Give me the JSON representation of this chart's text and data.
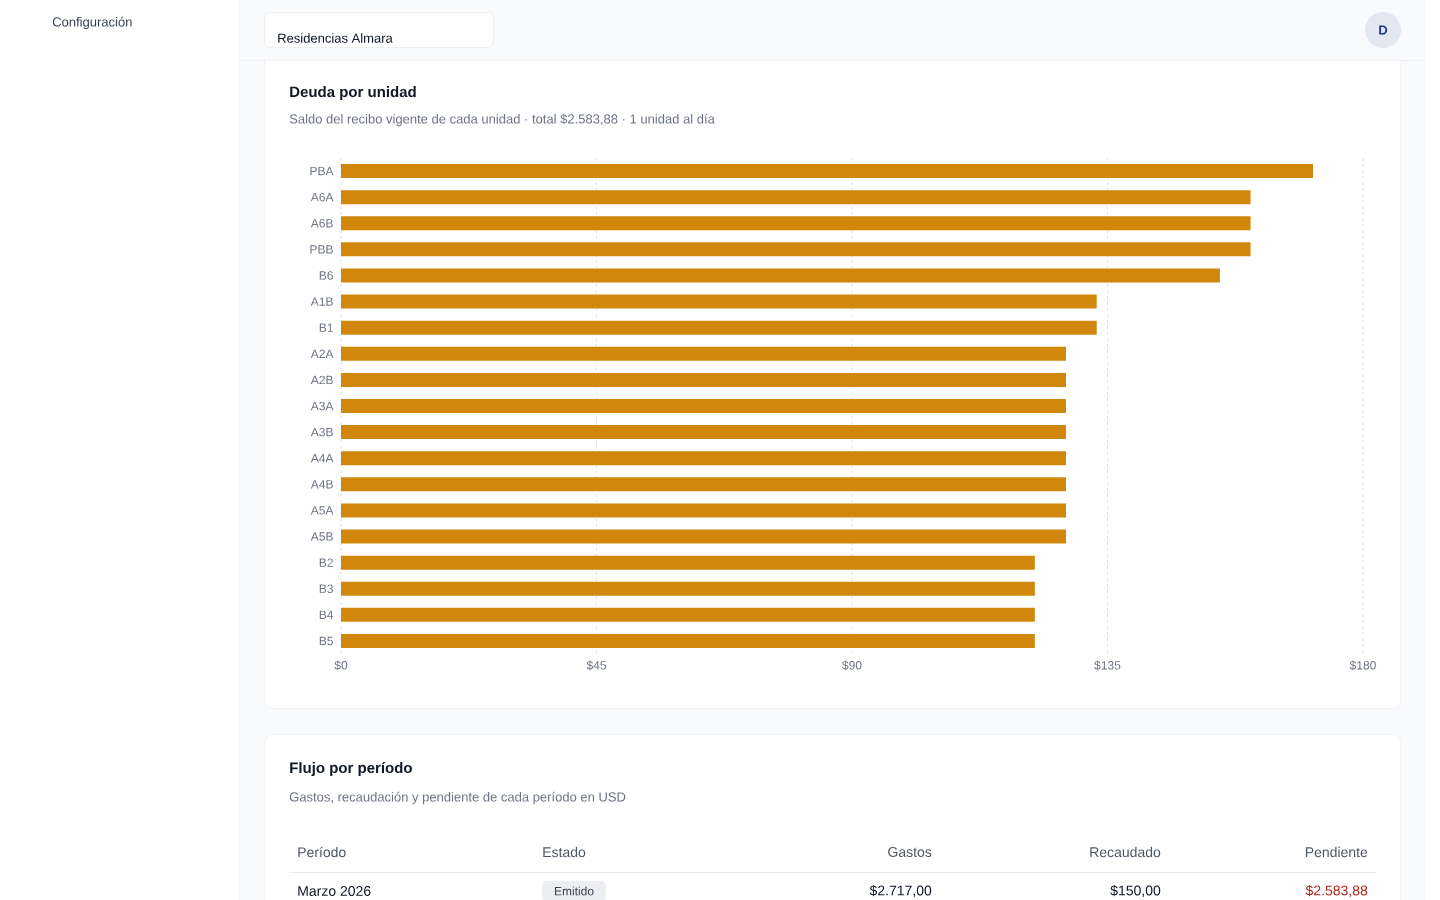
{
  "chart_data": [
    {
      "type": "other",
      "annotations": [
        "Configuración",
        "Residencias Almara",
        "D"
      ]
    },
    {
      "type": "bar",
      "orientation": "horizontal",
      "title": "Deuda por unidad",
      "subtitle": "Saldo del recibo vigente de cada unidad · total $2.583,88 · 1 unidad al día",
      "categories": [
        "PBA",
        "A6A",
        "A6B",
        "PBB",
        "B6",
        "A1B",
        "B1",
        "A2A",
        "A2B",
        "A3A",
        "A3B",
        "A4A",
        "A4B",
        "A5A",
        "A5B",
        "B2",
        "B3",
        "B4",
        "B5"
      ],
      "values": [
        171.2,
        160.2,
        160.2,
        160.2,
        154.8,
        133.1,
        133.1,
        127.7,
        127.7,
        127.7,
        127.7,
        127.7,
        127.7,
        127.7,
        127.7,
        122.2,
        122.2,
        122.2,
        122.2
      ],
      "color": "#d1870c",
      "xlim": [
        0,
        180
      ],
      "xticks": [
        {
          "value": 0,
          "label": "$0"
        },
        {
          "value": 45,
          "label": "$45"
        },
        {
          "value": 90,
          "label": "$90"
        },
        {
          "value": 135,
          "label": "$135"
        },
        {
          "value": 180,
          "label": "$180"
        }
      ],
      "grid": "x"
    },
    {
      "type": "other",
      "title": "Flujo por período",
      "subtitle": "Gastos, recaudación y pendiente de cada período en USD",
      "annotations": [
        "Período",
        "Estado",
        "Gastos",
        "Recaudado",
        "Pendiente",
        "Marzo 2026",
        "Emitido",
        "$2.717,00",
        "$150,00",
        "$2.583,88"
      ]
    }
  ]
}
